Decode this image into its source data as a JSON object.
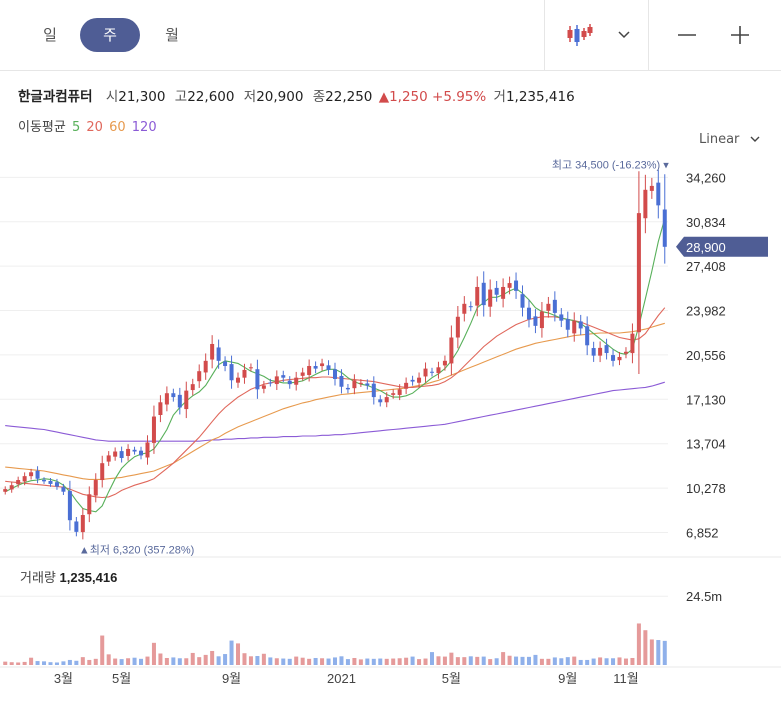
{
  "toolbar": {
    "tabs": [
      {
        "label": "일",
        "active": false
      },
      {
        "label": "주",
        "active": true
      },
      {
        "label": "월",
        "active": false
      }
    ],
    "chart_type_icon": "candlestick-icon",
    "dropdown_icon": "chevron-down-icon",
    "zoom_out_icon": "minus-icon",
    "zoom_in_icon": "plus-icon"
  },
  "quote": {
    "name": "한글과컴퓨터",
    "open_label": "시",
    "open": "21,300",
    "high_label": "고",
    "high": "22,600",
    "low_label": "저",
    "low": "20,900",
    "close_label": "종",
    "close": "22,250",
    "change": "▲1,250",
    "change_pct": "+5.95%",
    "volume_label": "거",
    "volume": "1,235,416"
  },
  "moving_average": {
    "label": "이동평균",
    "periods": [
      {
        "label": "5",
        "color": "#58b05a"
      },
      {
        "label": "20",
        "color": "#e0685c"
      },
      {
        "label": "60",
        "color": "#e79a4e"
      },
      {
        "label": "120",
        "color": "#8b5bd6"
      }
    ]
  },
  "scale_selector": {
    "label": "Linear",
    "icon": "chevron-down-icon"
  },
  "colors": {
    "up": "#d24b4b",
    "down": "#4a6fd4",
    "volume_up": "#e59a9a",
    "volume_down": "#8fb0ea",
    "price_tag": "#4f5d95"
  },
  "chart_data": {
    "type": "candlestick",
    "y_ticks": [
      "34,260",
      "30,834",
      "27,408",
      "23,982",
      "20,556",
      "17,130",
      "13,704",
      "10,278",
      "6,852"
    ],
    "y_tick_values": [
      34260,
      30834,
      27408,
      23982,
      20556,
      17130,
      13704,
      10278,
      6852
    ],
    "ylim": [
      5500,
      35600
    ],
    "x_ticks": [
      "3월",
      "5월",
      "9월",
      "2021",
      "5월",
      "9월",
      "11월"
    ],
    "x_tick_index": [
      9,
      18,
      35,
      52,
      69,
      87,
      96
    ],
    "current_price_label": "28,900",
    "current_price": 28900,
    "max_label": "최고 34,500 (-16.23%)",
    "max_index": 102,
    "max_value": 34500,
    "min_label": "▲최저 6,320 (357.28%)",
    "min_index": 12,
    "min_value": 6320,
    "volume_label": "거래량",
    "volume_value": "1,235,416",
    "volume_tick": "24.5m",
    "volume_tick_value": 24500000,
    "volume_max": 31000000,
    "closes": [
      10200,
      10500,
      10900,
      11200,
      11500,
      11000,
      10800,
      10600,
      10400,
      10000,
      7800,
      6900,
      8200,
      9800,
      10900,
      12200,
      12800,
      13100,
      12600,
      13300,
      13100,
      12800,
      13800,
      15800,
      16900,
      17600,
      17300,
      16500,
      17800,
      18300,
      19300,
      20100,
      21400,
      20100,
      19700,
      18600,
      18800,
      19400,
      19600,
      17900,
      18200,
      18400,
      18900,
      18800,
      18300,
      18800,
      19200,
      19700,
      19500,
      19900,
      19400,
      18700,
      18100,
      17900,
      18600,
      18400,
      18200,
      17300,
      16900,
      17300,
      17600,
      17900,
      18400,
      18500,
      18800,
      19500,
      19200,
      19600,
      20100,
      21900,
      23500,
      24500,
      24300,
      25800,
      24400,
      25600,
      25200,
      25800,
      26100,
      25500,
      24200,
      23300,
      22800,
      23900,
      24500,
      23800,
      23200,
      22500,
      23200,
      22600,
      21300,
      20500,
      21100,
      20700,
      20100,
      20400,
      20800,
      22200,
      31500,
      33300,
      33600,
      32100,
      28900
    ],
    "volumes": [
      1200000,
      1000000,
      900000,
      1100000,
      2600000,
      1400000,
      1300000,
      1000000,
      900000,
      1300000,
      1800000,
      1500000,
      2800000,
      1800000,
      2200000,
      10500000,
      3800000,
      2300000,
      2100000,
      2400000,
      2600000,
      2200000,
      3000000,
      7900000,
      4100000,
      2500000,
      2700000,
      2400000,
      2400000,
      4300000,
      2800000,
      3600000,
      5000000,
      3100000,
      3900000,
      8700000,
      7700000,
      4200000,
      3100000,
      3200000,
      4000000,
      2700000,
      2400000,
      2300000,
      2200000,
      3000000,
      2600000,
      2200000,
      2500000,
      2400000,
      2300000,
      2700000,
      3100000,
      2100000,
      2500000,
      2000000,
      2300000,
      2200000,
      2300000,
      2200000,
      2300000,
      2400000,
      2600000,
      3000000,
      2100000,
      2300000,
      4600000,
      3100000,
      3000000,
      4400000,
      2800000,
      2800000,
      3100000,
      2900000,
      3000000,
      2100000,
      2400000,
      4600000,
      3300000,
      3000000,
      2900000,
      2900000,
      3600000,
      2200000,
      2200000,
      2700000,
      2400000,
      2800000,
      3000000,
      1800000,
      1800000,
      2300000,
      2700000,
      2400000,
      2400000,
      2700000,
      2300000,
      2500000,
      14800000,
      12400000,
      9100000,
      8900000,
      8600000
    ],
    "ma5": [
      10000,
      10250,
      10500,
      10700,
      10850,
      10900,
      11000,
      10950,
      10800,
      10500,
      10000,
      9300,
      8700,
      8550,
      8450,
      8900,
      10000,
      11000,
      11800,
      12300,
      12700,
      12900,
      13000,
      13300,
      14000,
      14800,
      15900,
      16500,
      17000,
      17400,
      17700,
      18200,
      19000,
      19800,
      20100,
      20000,
      19900,
      19600,
      19300,
      19100,
      18900,
      18600,
      18500,
      18400,
      18400,
      18450,
      18550,
      18800,
      19050,
      19300,
      19450,
      19450,
      19200,
      18800,
      18500,
      18300,
      18200,
      18000,
      17800,
      17500,
      17300,
      17300,
      17400,
      17600,
      18000,
      18400,
      18800,
      19100,
      19500,
      20100,
      20900,
      21900,
      23000,
      24200,
      24600,
      25000,
      25000,
      25200,
      25500,
      25700,
      25300,
      24800,
      24200,
      23900,
      23800,
      23600,
      23400,
      23300,
      23200,
      23000,
      22600,
      22200,
      21800,
      21400,
      21000,
      20700,
      20600,
      21000,
      22800,
      24900,
      27000,
      29300,
      31100
    ],
    "ma20": [
      10800,
      10750,
      10700,
      10650,
      10600,
      10550,
      10500,
      10450,
      10400,
      10350,
      10200,
      10000,
      9800,
      9700,
      9600,
      9550,
      9600,
      9800,
      10100,
      10300,
      10500,
      10650,
      10800,
      11000,
      11400,
      11800,
      12200,
      12700,
      13200,
      13700,
      14200,
      14800,
      15400,
      16000,
      16500,
      16900,
      17300,
      17600,
      17900,
      18100,
      18300,
      18400,
      18500,
      18600,
      18650,
      18700,
      18750,
      18800,
      18800,
      18850,
      18850,
      18800,
      18750,
      18700,
      18650,
      18600,
      18550,
      18500,
      18400,
      18300,
      18200,
      18100,
      18050,
      18050,
      18100,
      18150,
      18200,
      18300,
      18500,
      18800,
      19200,
      19700,
      20200,
      20700,
      21200,
      21600,
      22000,
      22300,
      22600,
      22900,
      23100,
      23300,
      23400,
      23500,
      23500,
      23500,
      23400,
      23300,
      23200,
      23100,
      22900,
      22700,
      22500,
      22300,
      22100,
      21900,
      21800,
      21700,
      21800,
      22200,
      22900,
      23600,
      24200
    ],
    "ma60": [
      11900,
      11850,
      11800,
      11750,
      11700,
      11650,
      11600,
      11500,
      11400,
      11300,
      11200,
      11100,
      11000,
      10950,
      10950,
      10950,
      11000,
      11050,
      11100,
      11200,
      11300,
      11400,
      11500,
      11600,
      11800,
      12000,
      12200,
      12500,
      12800,
      13100,
      13400,
      13700,
      14000,
      14200,
      14500,
      14750,
      15000,
      15200,
      15400,
      15600,
      15800,
      16000,
      16200,
      16400,
      16550,
      16700,
      16850,
      16950,
      17100,
      17200,
      17300,
      17400,
      17500,
      17550,
      17600,
      17650,
      17700,
      17750,
      17800,
      17850,
      17900,
      17950,
      18000,
      18100,
      18200,
      18300,
      18450,
      18600,
      18800,
      19000,
      19200,
      19400,
      19600,
      19800,
      20000,
      20200,
      20400,
      20600,
      20800,
      21000,
      21150,
      21300,
      21450,
      21550,
      21650,
      21750,
      21850,
      21950,
      22050,
      22100,
      22150,
      22200,
      22250,
      22250,
      22250,
      22250,
      22300,
      22350,
      22450,
      22550,
      22700,
      22850,
      23000
    ],
    "ma120": [
      15100,
      15050,
      15000,
      14950,
      14900,
      14850,
      14800,
      14700,
      14600,
      14500,
      14400,
      14300,
      14200,
      14100,
      14000,
      13950,
      13900,
      13900,
      13900,
      13900,
      13900,
      13900,
      13900,
      13900,
      13900,
      13900,
      13900,
      13900,
      13900,
      13900,
      13900,
      13950,
      14000,
      14000,
      14050,
      14050,
      14100,
      14100,
      14150,
      14150,
      14200,
      14200,
      14200,
      14250,
      14250,
      14250,
      14300,
      14300,
      14300,
      14350,
      14350,
      14400,
      14400,
      14450,
      14500,
      14550,
      14600,
      14650,
      14700,
      14750,
      14800,
      14850,
      14900,
      14950,
      15000,
      15050,
      15100,
      15150,
      15200,
      15300,
      15400,
      15500,
      15600,
      15700,
      15800,
      15900,
      16000,
      16100,
      16200,
      16300,
      16400,
      16500,
      16600,
      16700,
      16800,
      16900,
      17000,
      17100,
      17200,
      17300,
      17400,
      17500,
      17600,
      17700,
      17800,
      17850,
      17900,
      17950,
      18000,
      18050,
      18150,
      18300,
      18450
    ]
  }
}
